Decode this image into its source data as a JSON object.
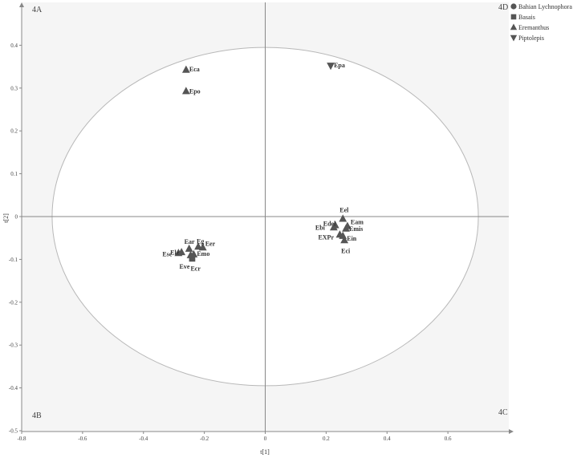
{
  "chart_data": {
    "type": "scatter",
    "xlabel": "t[1]",
    "ylabel": "t[2]",
    "xlim": [
      -0.8,
      0.8
    ],
    "ylim": [
      -0.5,
      0.4
    ],
    "x_ticks": [
      "-0.8",
      "-0.6",
      "-0.4",
      "-0.2",
      "0",
      "0.2",
      "0.4",
      "0.6"
    ],
    "x_tick_values": [
      -0.8,
      -0.6,
      -0.4,
      -0.2,
      0,
      0.2,
      0.4,
      0.6
    ],
    "y_ticks": [
      "0.4",
      "0.3",
      "0.2",
      "0.1",
      "0",
      "-0.1",
      "-0.2",
      "-0.3",
      "-0.4",
      "-0.5"
    ],
    "y_tick_values": [
      0.4,
      0.3,
      0.2,
      0.1,
      0,
      -0.1,
      -0.2,
      -0.3,
      -0.4,
      -0.5
    ],
    "grid": false,
    "legend_position": "top-right",
    "quadrant_labels": {
      "top_left": "4A",
      "top_right": "4D",
      "bottom_left": "4B",
      "bottom_right": "4C"
    },
    "ellipse": {
      "rx": 0.7,
      "ry": 0.395
    },
    "series": [
      {
        "name": "Bahian Lychnophora",
        "marker": "circle",
        "points": []
      },
      {
        "name": "Basais",
        "marker": "square",
        "points": [
          {
            "x": -0.24,
            "y": -0.098,
            "label": "Ecr"
          }
        ]
      },
      {
        "name": "Eremanthus",
        "marker": "triangle-up",
        "points": [
          {
            "x": -0.26,
            "y": 0.343,
            "label": "Eca"
          },
          {
            "x": -0.26,
            "y": 0.293,
            "label": "Epo"
          },
          {
            "x": -0.25,
            "y": -0.075,
            "label": "Ear"
          },
          {
            "x": -0.22,
            "y": -0.07,
            "label": "Eg"
          },
          {
            "x": -0.205,
            "y": -0.072,
            "label": "Eer"
          },
          {
            "x": -0.275,
            "y": -0.083,
            "label": "Ele"
          },
          {
            "x": -0.285,
            "y": -0.085,
            "label": "Ese"
          },
          {
            "x": -0.245,
            "y": -0.09,
            "label": "Eve"
          },
          {
            "x": -0.235,
            "y": -0.088,
            "label": "Emo"
          },
          {
            "x": 0.255,
            "y": -0.005,
            "label": "Eel"
          },
          {
            "x": 0.23,
            "y": -0.02,
            "label": "Edel"
          },
          {
            "x": 0.225,
            "y": -0.025,
            "label": "Ebi"
          },
          {
            "x": 0.27,
            "y": -0.022,
            "label": "Eam"
          },
          {
            "x": 0.265,
            "y": -0.028,
            "label": "Emis"
          },
          {
            "x": 0.245,
            "y": -0.042,
            "label": "EXPr"
          },
          {
            "x": 0.255,
            "y": -0.045,
            "label": "Ein"
          },
          {
            "x": 0.26,
            "y": -0.055,
            "label": "Eci"
          }
        ]
      },
      {
        "name": "Piptolepis",
        "marker": "triangle-down",
        "points": [
          {
            "x": 0.215,
            "y": 0.352,
            "label": "Epa"
          }
        ]
      }
    ]
  }
}
